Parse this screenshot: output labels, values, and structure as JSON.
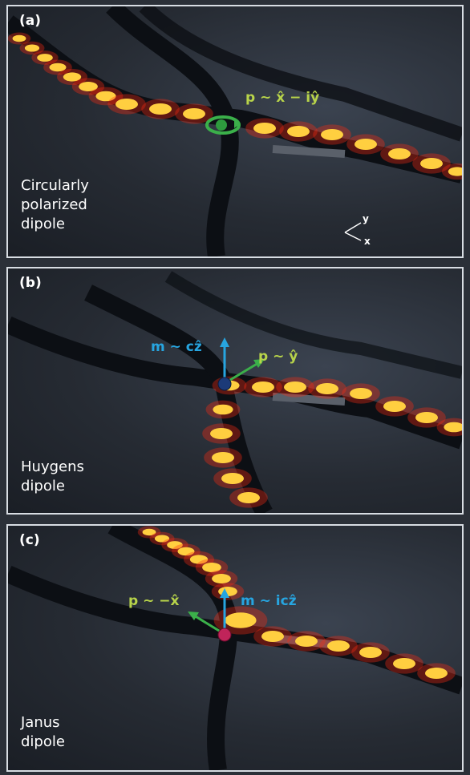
{
  "panels": [
    {
      "tag": "(a)",
      "caption": "Circularly\npolarized\ndipole",
      "formulas": [
        {
          "text": "p ~ x̂ − iŷ",
          "color": "#b8d44a"
        }
      ],
      "axes": {
        "y": "y",
        "x": "x"
      },
      "dipole_color": "#2e9a3e"
    },
    {
      "tag": "(b)",
      "caption": "Huygens\ndipole",
      "formulas": [
        {
          "text": "m ~ cẑ",
          "color": "#27a5e0"
        },
        {
          "text": "p ~ ŷ",
          "color": "#b8d44a"
        }
      ],
      "dipole_color": "#1c3a78"
    },
    {
      "tag": "(c)",
      "caption": "Janus\ndipole",
      "formulas": [
        {
          "text": "p ~ −x̂",
          "color": "#b8d44a"
        },
        {
          "text": "m ~ icẑ",
          "color": "#27a5e0"
        }
      ],
      "dipole_color": "#c0245a"
    }
  ],
  "colors": {
    "waveguide": "#0d1015",
    "mode_glow": "#ff3a1a",
    "mode_core": "#ffe27a",
    "frame_border": "#d8dde3"
  }
}
